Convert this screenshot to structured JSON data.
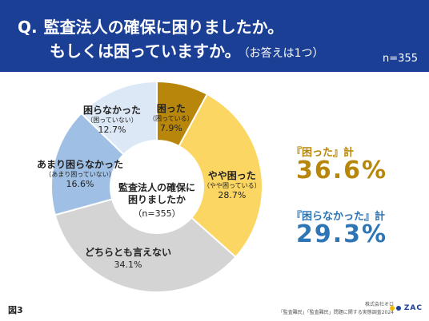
{
  "header": {
    "q_mark": "Q.",
    "title_line1": "監査法人の確保に困りましたか。",
    "title_line2": "もしくは困っていますか。",
    "title_note": "（お答えは1つ）",
    "sample_size": "n=355",
    "background_color": "#1a3f95"
  },
  "chart_data": {
    "type": "pie",
    "donut": true,
    "center_text": [
      "監査法人の確保に",
      "困りましたか"
    ],
    "center_n": "（n=355）",
    "series": [
      {
        "label": "困った",
        "sub_label": "（困っている）",
        "value": 7.9,
        "value_label": "7.9%",
        "color": "#b8860b"
      },
      {
        "label": "やや困った",
        "sub_label": "（やや困っている）",
        "value": 28.7,
        "value_label": "28.7%",
        "color": "#fcd662"
      },
      {
        "label": "どちらとも言えない",
        "sub_label": "",
        "value": 34.1,
        "value_label": "34.1%",
        "color": "#d4d4d4"
      },
      {
        "label": "あまり困らなかった",
        "sub_label": "（あまり困っていない）",
        "value": 16.6,
        "value_label": "16.6%",
        "color": "#9fc0e4"
      },
      {
        "label": "困らなかった",
        "sub_label": "（困っていない）",
        "value": 12.7,
        "value_label": "12.7%",
        "color": "#dce8f5"
      }
    ]
  },
  "summary": {
    "troubled_label": "『困った』計",
    "troubled_value": "36.6%",
    "troubled_color": "#b8860b",
    "not_troubled_label": "『困らなかった』計",
    "not_troubled_value": "29.3%",
    "not_troubled_color": "#2e75b6"
  },
  "footer": {
    "figure_label": "図3",
    "company": "株式会社オロ",
    "survey_title": "「監査難民」「監査難民」問題に関する実態調査2024",
    "logo_text": "ZAC",
    "logo_colors": [
      "#f5b800",
      "#1a3f95"
    ]
  }
}
